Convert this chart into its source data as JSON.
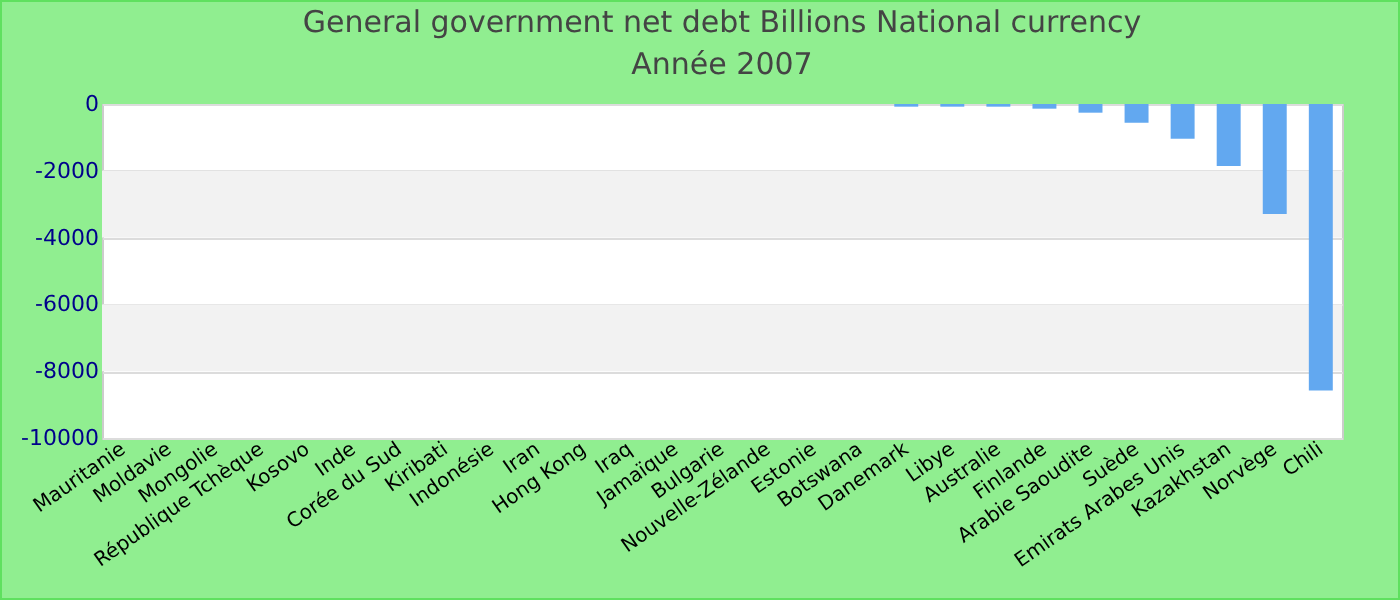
{
  "chart_data": {
    "type": "bar",
    "title": "General government net debt Billions National currency",
    "subtitle": "Année 2007",
    "categories": [
      "Mauritanie",
      "Moldavie",
      "Mongolie",
      "République Tchèque",
      "Kosovo",
      "Inde",
      "Corée du Sud",
      "Kiribati",
      "Indonésie",
      "Iran",
      "Hong Kong",
      "Iraq",
      "Jamaïque",
      "Bulgarie",
      "Nouvelle-Zélande",
      "Estonie",
      "Botswana",
      "Danemark",
      "Libye",
      "Australie",
      "Finlande",
      "Arabie Saoudite",
      "Suède",
      "Emirats Arabes Unis",
      "Kazakhstan",
      "Norvège",
      "Chili"
    ],
    "values": [
      null,
      null,
      null,
      null,
      null,
      null,
      null,
      null,
      null,
      null,
      null,
      null,
      null,
      null,
      null,
      null,
      null,
      -80,
      -80,
      -80,
      -140,
      -260,
      -560,
      -1040,
      -1860,
      -3290,
      -8580
    ],
    "color": "#62a8f0",
    "ylim": [
      -10000,
      0
    ],
    "yticks": [
      {
        "value": -10000,
        "label": "-10000"
      },
      {
        "value": -8000,
        "label": "-8000"
      },
      {
        "value": -6000,
        "label": "-6000"
      },
      {
        "value": -4000,
        "label": "-4000"
      },
      {
        "value": -2000,
        "label": "-2000"
      },
      0
    ],
    "grid": true
  }
}
